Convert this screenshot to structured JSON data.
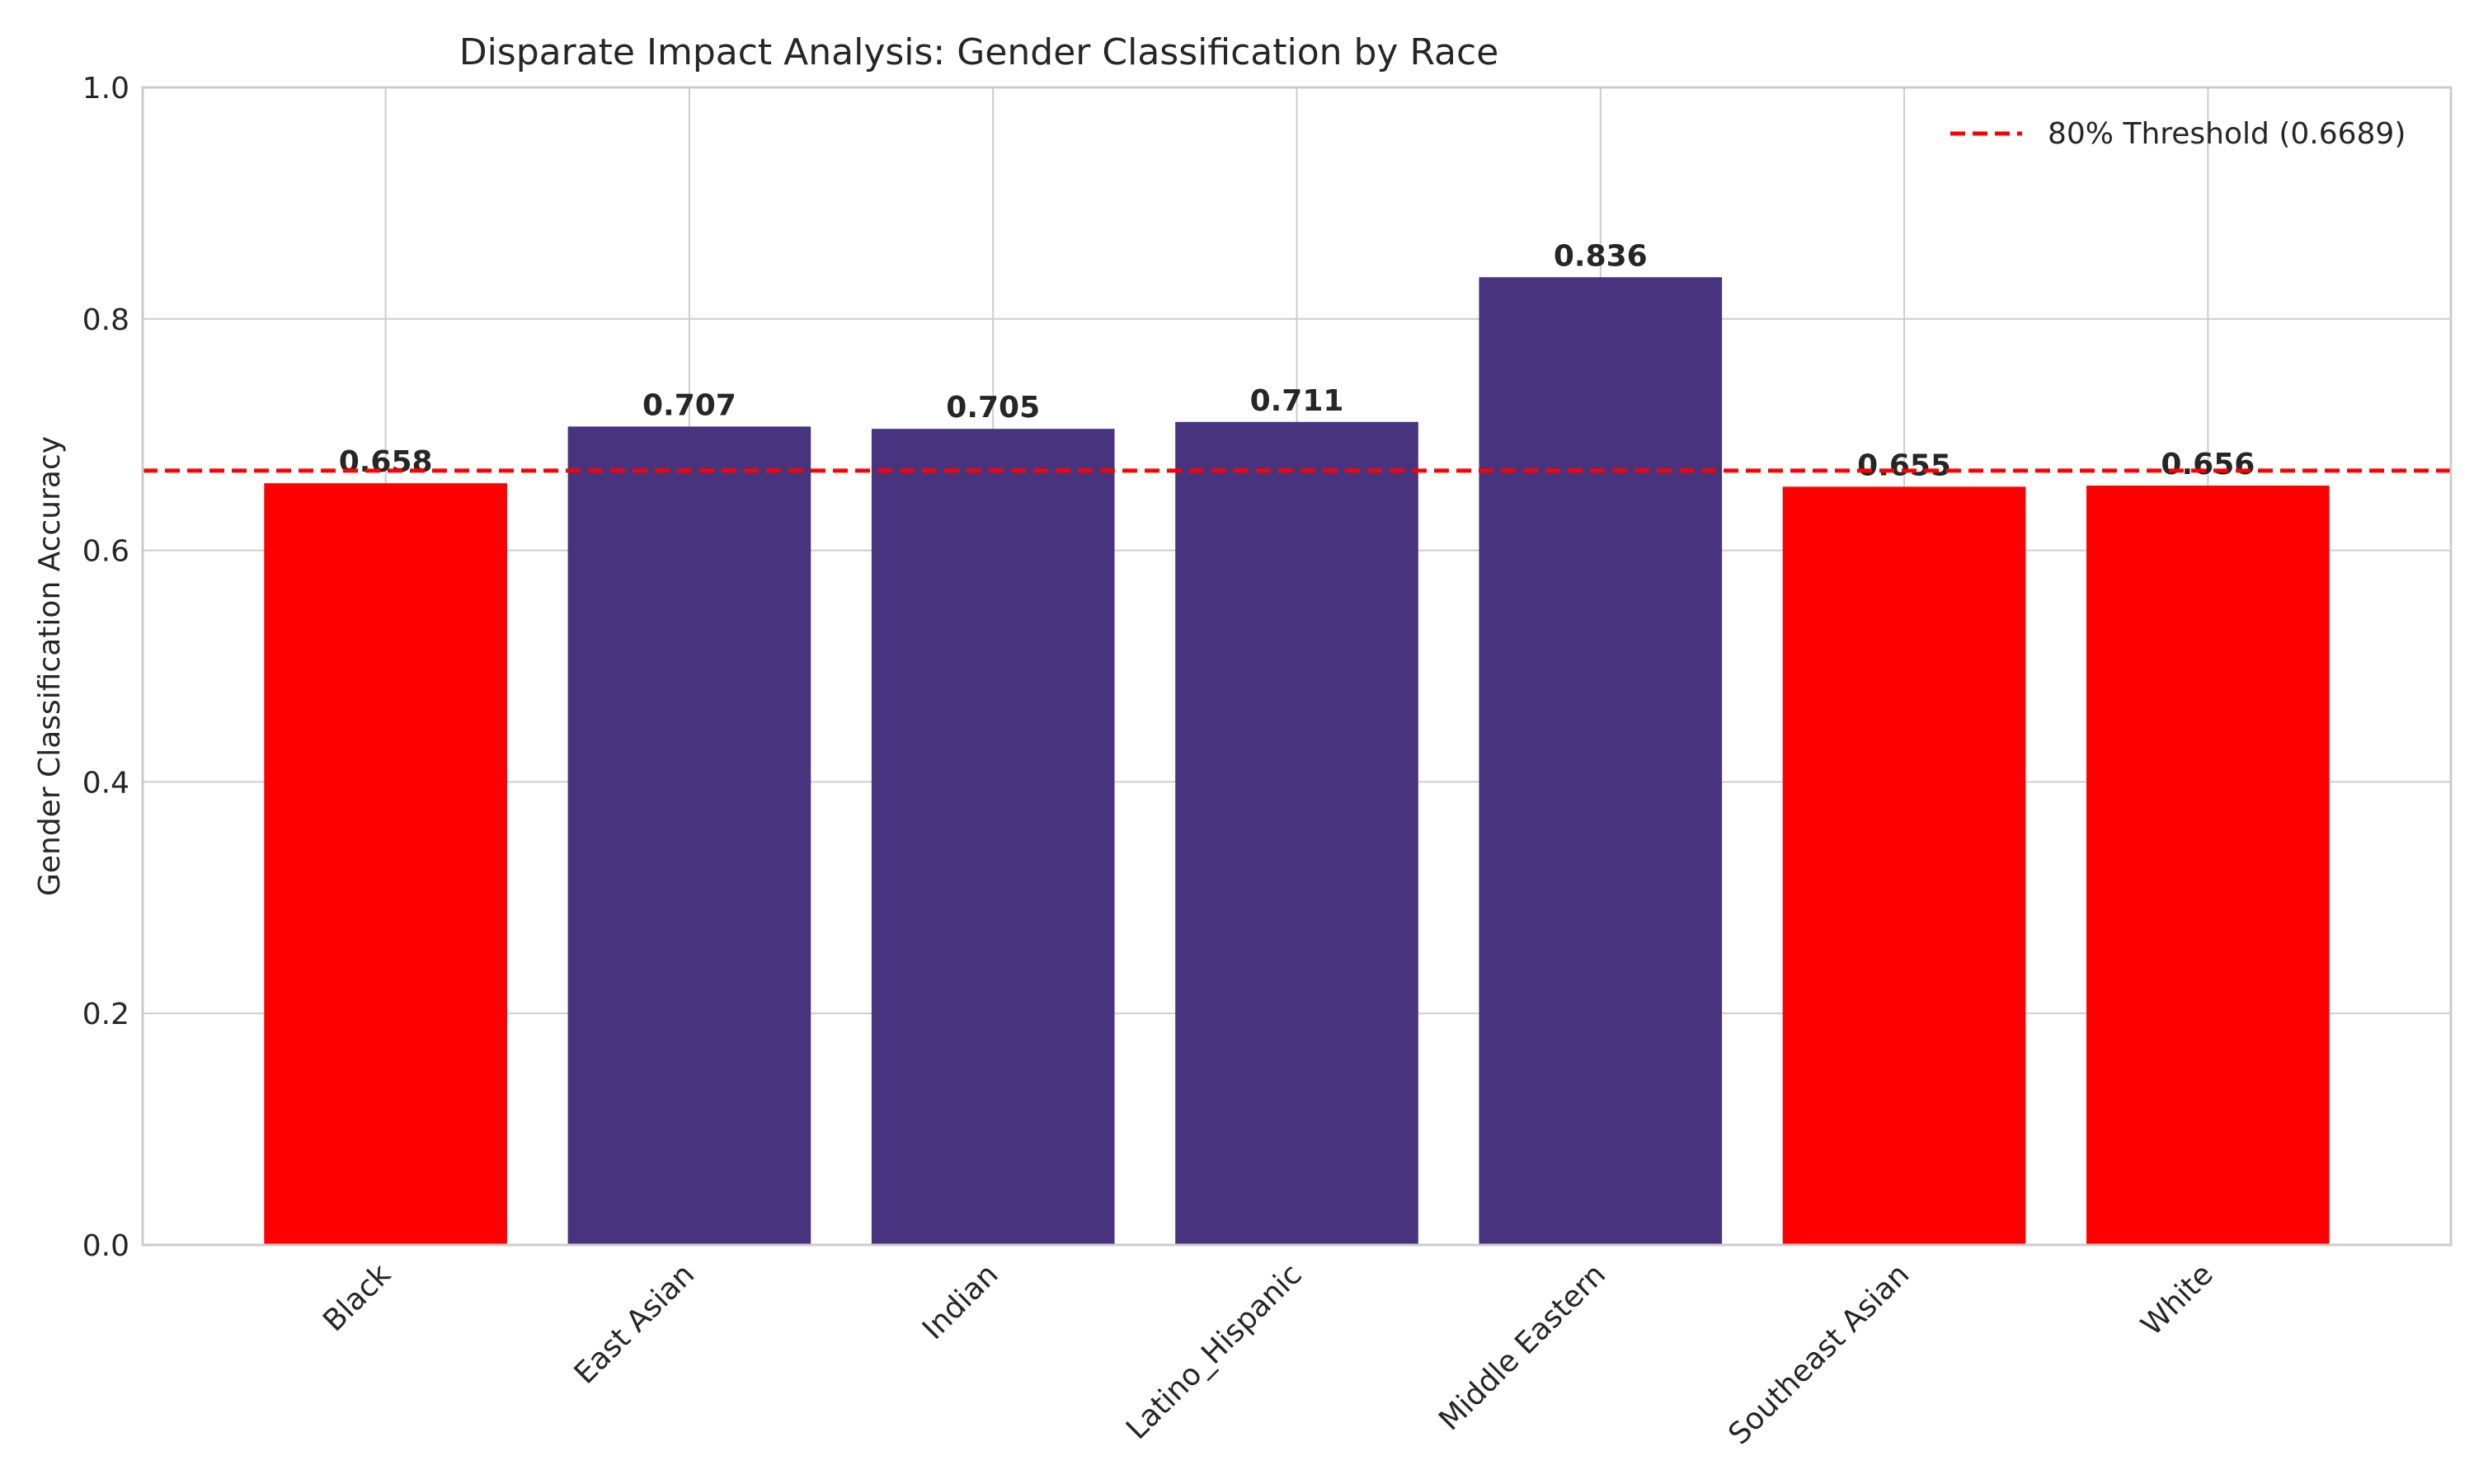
{
  "chart_data": {
    "type": "bar",
    "title": "Disparate Impact Analysis: Gender Classification by Race",
    "xlabel": "",
    "ylabel": "Gender Classification Accuracy",
    "categories": [
      "Black",
      "East Asian",
      "Indian",
      "Latino_Hispanic",
      "Middle Eastern",
      "Southeast Asian",
      "White"
    ],
    "values": [
      0.658,
      0.707,
      0.705,
      0.711,
      0.836,
      0.655,
      0.656
    ],
    "data_labels": [
      "0.658",
      "0.707",
      "0.705",
      "0.711",
      "0.836",
      "0.655",
      "0.656"
    ],
    "ylim": [
      0,
      1.0
    ],
    "yticks": [
      0.0,
      0.2,
      0.4,
      0.6,
      0.8,
      1.0
    ],
    "ytick_labels": [
      "0.0",
      "0.2",
      "0.4",
      "0.6",
      "0.8",
      "1.0"
    ],
    "threshold": {
      "value": 0.6689,
      "label": "80% Threshold (0.6689)",
      "color": "#ff0000",
      "style": "dashed"
    },
    "colors": {
      "above_threshold": "#47337e",
      "below_threshold": "#ff0000"
    },
    "grid": true,
    "legend_position": "top-right"
  }
}
